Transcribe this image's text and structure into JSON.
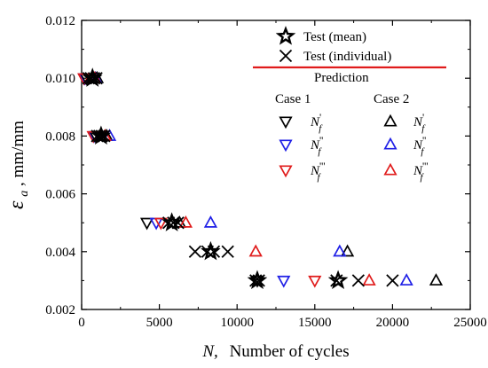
{
  "chart_data": {
    "type": "scatter",
    "xlabel_symbol": "N,",
    "xlabel_text": "Number of cycles",
    "ylabel_symbol": "ε",
    "ylabel_sub": "a",
    "ylabel_text": ",   mm/mm",
    "xlim": [
      0,
      25000
    ],
    "ylim": [
      0.002,
      0.012
    ],
    "xticks": [
      "0",
      "5000",
      "10000",
      "15000",
      "20000",
      "25000"
    ],
    "yticks": [
      "0.002",
      "0.004",
      "0.006",
      "0.008",
      "0.010",
      "0.012"
    ],
    "legend": {
      "placement": "top-right",
      "mean_label": "Test (mean)",
      "individual_label": "Test (individual)",
      "prediction_label": "Prediction",
      "case1_label": "Case 1",
      "case2_label": "Case 2",
      "nf_base": "N",
      "nf_sub": "f",
      "primes": [
        "'",
        "''",
        "'''"
      ]
    },
    "colors": {
      "black": "#000000",
      "blue": "#1f1fe6",
      "red": "#e01b1b",
      "prediction_line": "#e01b1b"
    },
    "series": [
      {
        "name": "Test (mean)",
        "marker": "star",
        "color": "black",
        "points": [
          [
            700,
            0.01
          ],
          [
            1250,
            0.008
          ],
          [
            5800,
            0.005
          ],
          [
            8300,
            0.004
          ],
          [
            11300,
            0.003
          ],
          [
            16500,
            0.003
          ]
        ]
      },
      {
        "name": "Test (individual)",
        "marker": "x",
        "color": "black",
        "points": [
          [
            450,
            0.01
          ],
          [
            600,
            0.01
          ],
          [
            800,
            0.01
          ],
          [
            950,
            0.01
          ],
          [
            1000,
            0.008
          ],
          [
            1150,
            0.008
          ],
          [
            1300,
            0.008
          ],
          [
            1450,
            0.008
          ],
          [
            5600,
            0.005
          ],
          [
            5900,
            0.005
          ],
          [
            6200,
            0.005
          ],
          [
            7300,
            0.004
          ],
          [
            8100,
            0.004
          ],
          [
            8500,
            0.004
          ],
          [
            9400,
            0.004
          ],
          [
            11200,
            0.003
          ],
          [
            11400,
            0.003
          ],
          [
            16400,
            0.003
          ],
          [
            17800,
            0.003
          ],
          [
            20000,
            0.003
          ]
        ]
      },
      {
        "name": "Case 1 Nf'",
        "marker": "tri-down",
        "color": "black",
        "points": [
          [
            300,
            0.01
          ],
          [
            900,
            0.008
          ],
          [
            4200,
            0.005
          ],
          [
            11300,
            0.003
          ]
        ]
      },
      {
        "name": "Case 1 Nf''",
        "marker": "tri-down",
        "color": "blue",
        "points": [
          [
            200,
            0.01
          ],
          [
            800,
            0.008
          ],
          [
            4800,
            0.005
          ],
          [
            13000,
            0.003
          ]
        ]
      },
      {
        "name": "Case 1 Nf'''",
        "marker": "tri-down",
        "color": "red",
        "points": [
          [
            150,
            0.01
          ],
          [
            750,
            0.008
          ],
          [
            5100,
            0.005
          ],
          [
            15000,
            0.003
          ]
        ]
      },
      {
        "name": "Case 2 Nf'",
        "marker": "tri-up",
        "color": "black",
        "points": [
          [
            1000,
            0.01
          ],
          [
            1600,
            0.008
          ],
          [
            6300,
            0.005
          ],
          [
            17100,
            0.004
          ],
          [
            22800,
            0.003
          ]
        ]
      },
      {
        "name": "Case 2 Nf''",
        "marker": "tri-up",
        "color": "blue",
        "points": [
          [
            900,
            0.01
          ],
          [
            1800,
            0.008
          ],
          [
            8300,
            0.005
          ],
          [
            16600,
            0.004
          ],
          [
            20900,
            0.003
          ]
        ]
      },
      {
        "name": "Case 2 Nf'''",
        "marker": "tri-up",
        "color": "red",
        "points": [
          [
            850,
            0.01
          ],
          [
            1500,
            0.008
          ],
          [
            6700,
            0.005
          ],
          [
            11200,
            0.004
          ],
          [
            18500,
            0.003
          ]
        ]
      }
    ]
  }
}
